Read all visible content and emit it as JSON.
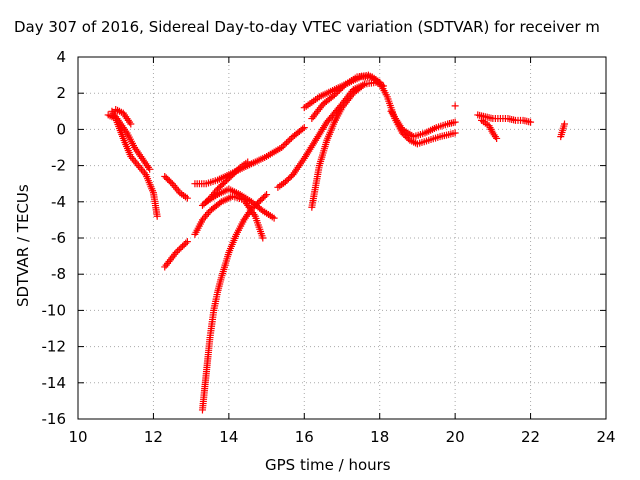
{
  "chart_data": {
    "type": "scatter",
    "title": "Day 307 of 2016, Sidereal Day-to-day VTEC variation (SDTVAR) for receiver m",
    "xlabel": "GPS time / hours",
    "ylabel": "SDTVAR / TECUs",
    "xlim": [
      10,
      24
    ],
    "ylim": [
      -16,
      4
    ],
    "xticks": [
      "10",
      "12",
      "14",
      "16",
      "18",
      "20",
      "22",
      "24"
    ],
    "yticks": [
      "4",
      "2",
      "0",
      "-2",
      "-4",
      "-6",
      "-8",
      "-10",
      "-12",
      "-14",
      "-16"
    ],
    "grid": true,
    "marker": "+",
    "series_color": "#ff0000",
    "series": [
      {
        "x": [
          10.8,
          11.0,
          11.2,
          11.4,
          11.6,
          11.8,
          12.0,
          12.1
        ],
        "y": [
          0.8,
          0.6,
          -0.5,
          -1.5,
          -2.0,
          -2.5,
          -3.5,
          -4.8
        ]
      },
      {
        "x": [
          10.9,
          11.1,
          11.3,
          11.5,
          11.7,
          11.9
        ],
        "y": [
          1.0,
          0.4,
          -0.2,
          -1.0,
          -1.6,
          -2.2
        ]
      },
      {
        "x": [
          11.0,
          11.2,
          11.4
        ],
        "y": [
          1.1,
          0.9,
          0.3
        ]
      },
      {
        "x": [
          12.3,
          12.5,
          12.7,
          12.9
        ],
        "y": [
          -2.6,
          -3.0,
          -3.5,
          -3.8
        ]
      },
      {
        "x": [
          12.3,
          12.6,
          12.9
        ],
        "y": [
          -7.6,
          -6.8,
          -6.2
        ]
      },
      {
        "x": [
          13.1,
          13.4,
          13.7,
          14.0,
          14.3,
          14.6,
          15.0,
          15.4,
          15.7,
          16.0
        ],
        "y": [
          -3.0,
          -3.0,
          -2.8,
          -2.5,
          -2.2,
          -1.9,
          -1.5,
          -1.0,
          -0.4,
          0.1
        ]
      },
      {
        "x": [
          13.3,
          13.5,
          13.7,
          13.9,
          14.1,
          14.3,
          14.5
        ],
        "y": [
          -4.2,
          -3.8,
          -3.3,
          -2.9,
          -2.5,
          -2.1,
          -1.8
        ]
      },
      {
        "x": [
          13.1,
          13.3,
          13.5,
          13.8,
          14.1,
          14.4,
          14.7,
          14.9
        ],
        "y": [
          -5.8,
          -5.0,
          -4.5,
          -4.0,
          -3.7,
          -3.9,
          -4.8,
          -6.0
        ]
      },
      {
        "x": [
          13.4,
          13.7,
          14.0,
          14.3,
          14.6,
          14.9,
          15.2
        ],
        "y": [
          -4.0,
          -3.6,
          -3.3,
          -3.6,
          -4.0,
          -4.5,
          -4.9
        ]
      },
      {
        "x": [
          13.3,
          13.4,
          13.5,
          13.6,
          13.7,
          13.8,
          13.9,
          14.0,
          14.2,
          14.4,
          14.6,
          14.8,
          15.0
        ],
        "y": [
          -15.5,
          -13.5,
          -11.5,
          -10.0,
          -9.0,
          -8.2,
          -7.5,
          -6.8,
          -5.8,
          -5.0,
          -4.4,
          -4.0,
          -3.6
        ]
      },
      {
        "x": [
          15.3,
          15.5,
          15.7,
          16.0,
          16.3,
          16.6,
          17.0,
          17.3,
          17.6,
          17.9,
          18.1
        ],
        "y": [
          -3.2,
          -2.9,
          -2.5,
          -1.6,
          -0.6,
          0.4,
          1.4,
          2.2,
          2.5,
          2.6,
          2.4
        ]
      },
      {
        "x": [
          16.0,
          16.2,
          16.4,
          16.6,
          16.9,
          17.2,
          17.5,
          17.8,
          18.0
        ],
        "y": [
          1.2,
          1.5,
          1.8,
          2.0,
          2.3,
          2.6,
          2.9,
          2.9,
          2.6
        ]
      },
      {
        "x": [
          16.2,
          16.4,
          16.6,
          16.8,
          17.0,
          17.3,
          17.6
        ],
        "y": [
          -4.3,
          -2.0,
          -0.6,
          0.4,
          1.2,
          2.0,
          2.5
        ]
      },
      {
        "x": [
          16.2,
          16.5,
          16.8,
          17.1,
          17.4,
          17.7,
          18.0,
          18.2,
          18.4,
          18.6,
          18.8,
          19.0,
          19.3,
          19.6,
          20.0
        ],
        "y": [
          0.6,
          1.4,
          1.9,
          2.5,
          2.9,
          3.0,
          2.6,
          1.8,
          0.6,
          -0.2,
          -0.6,
          -0.8,
          -0.6,
          -0.4,
          -0.2
        ]
      },
      {
        "x": [
          18.3,
          18.6,
          18.9,
          19.2,
          19.5,
          19.8,
          20.0
        ],
        "y": [
          1.0,
          0.0,
          -0.4,
          -0.2,
          0.1,
          0.3,
          0.4
        ]
      },
      {
        "x": [
          20.0
        ],
        "y": [
          1.3
        ]
      },
      {
        "x": [
          20.6,
          20.8,
          21.0,
          21.2,
          21.4,
          21.6,
          21.8,
          22.0
        ],
        "y": [
          0.8,
          0.7,
          0.6,
          0.6,
          0.6,
          0.5,
          0.5,
          0.4
        ]
      },
      {
        "x": [
          20.7,
          20.9,
          21.0,
          21.1
        ],
        "y": [
          0.5,
          0.2,
          -0.2,
          -0.5
        ]
      },
      {
        "x": [
          22.8,
          22.9
        ],
        "y": [
          -0.4,
          0.3
        ]
      }
    ]
  }
}
